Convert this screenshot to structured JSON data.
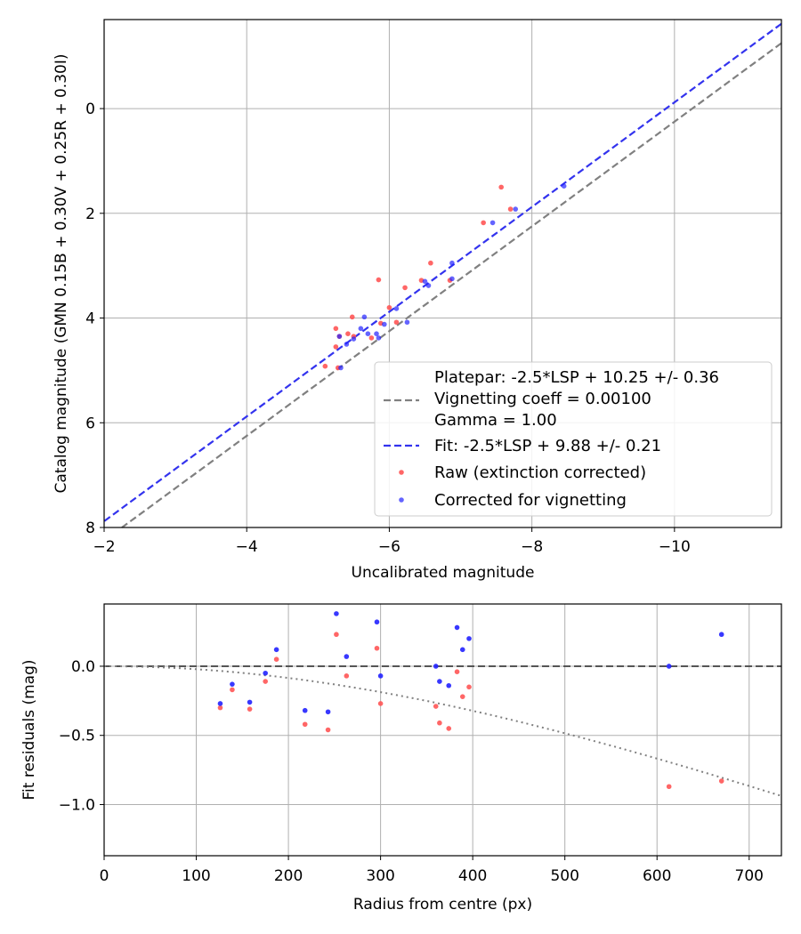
{
  "chart_data": [
    {
      "type": "scatter",
      "xlabel": "Uncalibrated magnitude",
      "ylabel": "Catalog magnitude (GMN 0.15B + 0.30V + 0.25R + 0.30I)",
      "xlim": [
        -2,
        -11.5
      ],
      "ylim": [
        8.0,
        -1.7
      ],
      "x_inverted": true,
      "y_inverted": true,
      "grid": true,
      "xticks": [
        -2,
        -4,
        -6,
        -8,
        -10
      ],
      "xtick_labels": [
        "−2",
        "−4",
        "−6",
        "−8",
        "−10"
      ],
      "yticks": [
        0,
        2,
        4,
        6,
        8
      ],
      "ytick_labels": [
        "0",
        "2",
        "4",
        "6",
        "8"
      ],
      "legend_position": "lower-right",
      "lines": [
        {
          "name": "Platepar: -2.5*LSP + 10.25 +/- 0.36\nVignetting coeff = 0.00100\nGamma = 1.00",
          "legend_lines": [
            "Platepar: -2.5*LSP + 10.25 +/- 0.36",
            "Vignetting coeff = 0.00100",
            "Gamma = 1.00"
          ],
          "slope": 1,
          "intercept": 10.25,
          "color": "#808080",
          "dash": true
        },
        {
          "name": "Fit: -2.5*LSP + 9.88 +/- 0.21",
          "slope": 1,
          "intercept": 9.88,
          "color": "#3333ee",
          "dash": true
        }
      ],
      "series": [
        {
          "name": "Raw (extinction corrected)",
          "color": "#ff5555",
          "points": [
            [
              -5.25,
              4.2
            ],
            [
              -5.25,
              4.55
            ],
            [
              -5.3,
              4.35
            ],
            [
              -5.42,
              4.3
            ],
            [
              -5.48,
              3.98
            ],
            [
              -5.5,
              4.35
            ],
            [
              -5.1,
              4.92
            ],
            [
              -5.28,
              4.95
            ],
            [
              -5.75,
              4.38
            ],
            [
              -5.85,
              3.27
            ],
            [
              -5.88,
              4.1
            ],
            [
              -6.0,
              3.8
            ],
            [
              -6.1,
              4.08
            ],
            [
              -6.22,
              3.42
            ],
            [
              -6.45,
              3.28
            ],
            [
              -6.58,
              2.95
            ],
            [
              -6.85,
              3.28
            ],
            [
              -7.32,
              2.18
            ],
            [
              -7.57,
              1.5
            ],
            [
              -7.7,
              1.92
            ]
          ]
        },
        {
          "name": "Corrected for vignetting",
          "color": "#2222ff",
          "points": [
            [
              -5.3,
              4.35
            ],
            [
              -5.32,
              4.95
            ],
            [
              -5.4,
              4.5
            ],
            [
              -5.5,
              4.4
            ],
            [
              -5.6,
              4.2
            ],
            [
              -5.65,
              3.98
            ],
            [
              -5.7,
              4.3
            ],
            [
              -5.82,
              4.3
            ],
            [
              -5.85,
              4.38
            ],
            [
              -5.93,
              4.12
            ],
            [
              -6.1,
              3.82
            ],
            [
              -6.25,
              4.08
            ],
            [
              -6.5,
              3.3
            ],
            [
              -6.55,
              3.38
            ],
            [
              -6.88,
              2.95
            ],
            [
              -6.88,
              3.25
            ],
            [
              -7.45,
              2.18
            ],
            [
              -7.77,
              1.92
            ],
            [
              -8.45,
              1.48
            ]
          ]
        }
      ]
    },
    {
      "type": "scatter",
      "xlabel": "Radius from centre (px)",
      "ylabel": "Fit residuals (mag)",
      "xlim": [
        0,
        735
      ],
      "ylim": [
        -1.37,
        0.45
      ],
      "grid": true,
      "xticks": [
        0,
        100,
        200,
        300,
        400,
        500,
        600,
        700
      ],
      "xtick_labels": [
        "0",
        "100",
        "200",
        "300",
        "400",
        "500",
        "600",
        "700"
      ],
      "yticks": [
        0.0,
        -0.5,
        -1.0
      ],
      "ytick_labels": [
        "0.0",
        "−0.5",
        "−1.0"
      ],
      "reference_lines": [
        {
          "kind": "horizontal",
          "y": 0,
          "color": "#555555",
          "dash": true
        },
        {
          "kind": "vignetting-curve",
          "coefficient": 0.001,
          "gamma": 1.0,
          "color": "#808080",
          "dotted": true
        }
      ],
      "series": [
        {
          "name": "Raw (extinction corrected)",
          "color": "#ff5555",
          "points": [
            [
              126,
              -0.3
            ],
            [
              139,
              -0.17
            ],
            [
              158,
              -0.31
            ],
            [
              175,
              -0.11
            ],
            [
              187,
              0.05
            ],
            [
              218,
              -0.42
            ],
            [
              243,
              -0.46
            ],
            [
              252,
              0.23
            ],
            [
              263,
              -0.07
            ],
            [
              296,
              0.13
            ],
            [
              300,
              -0.27
            ],
            [
              360,
              -0.29
            ],
            [
              364,
              -0.41
            ],
            [
              374,
              -0.45
            ],
            [
              383,
              -0.04
            ],
            [
              389,
              -0.22
            ],
            [
              396,
              -0.15
            ],
            [
              613,
              -0.87
            ],
            [
              670,
              -0.83
            ]
          ]
        },
        {
          "name": "Corrected for vignetting",
          "color": "#2222ff",
          "points": [
            [
              126,
              -0.27
            ],
            [
              139,
              -0.13
            ],
            [
              158,
              -0.26
            ],
            [
              175,
              -0.05
            ],
            [
              187,
              0.12
            ],
            [
              218,
              -0.32
            ],
            [
              243,
              -0.33
            ],
            [
              252,
              0.38
            ],
            [
              263,
              0.07
            ],
            [
              296,
              0.32
            ],
            [
              300,
              -0.07
            ],
            [
              360,
              0.0
            ],
            [
              364,
              -0.11
            ],
            [
              374,
              -0.14
            ],
            [
              383,
              0.28
            ],
            [
              389,
              0.12
            ],
            [
              396,
              0.2
            ],
            [
              613,
              0.0
            ],
            [
              670,
              0.23
            ]
          ]
        }
      ]
    }
  ]
}
